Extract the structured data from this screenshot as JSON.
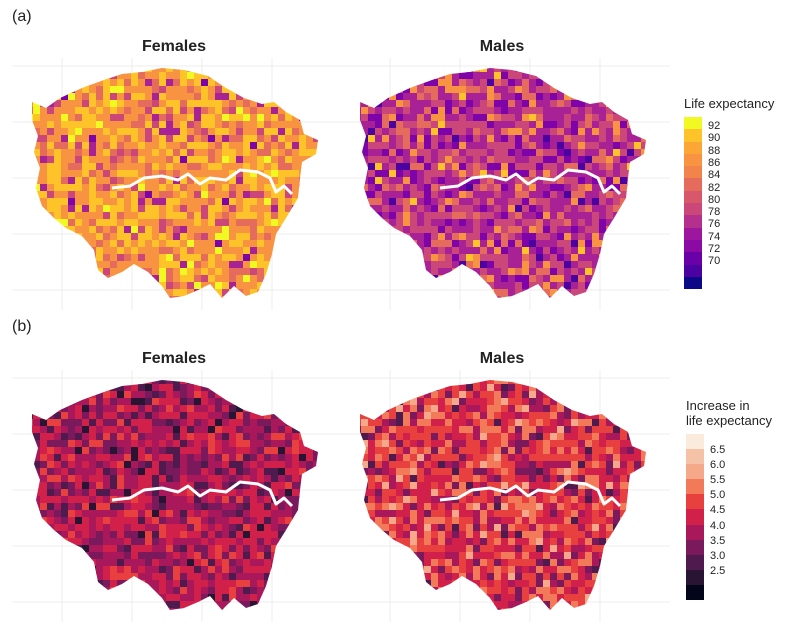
{
  "panels": [
    {
      "letter": "(a)",
      "facets": [
        {
          "title": "Females",
          "palette": [
            "#f0f921",
            "#fdc328",
            "#f89441",
            "#e56b5d",
            "#cb4679",
            "#a82296",
            "#7e03a8"
          ],
          "weights": [
            0.04,
            0.32,
            0.38,
            0.14,
            0.07,
            0.04,
            0.01
          ]
        },
        {
          "title": "Males",
          "palette": [
            "#fdc328",
            "#f89441",
            "#e56b5d",
            "#cb4679",
            "#a82296",
            "#7e03a8",
            "#4c02a1"
          ],
          "weights": [
            0.02,
            0.06,
            0.14,
            0.3,
            0.3,
            0.14,
            0.04
          ]
        }
      ],
      "legend": {
        "title": "Life expectancy",
        "colors": [
          "#f0f921",
          "#fdc328",
          "#fca636",
          "#f89441",
          "#f2844b",
          "#e56b5d",
          "#d8576b",
          "#cb4679",
          "#b52f8c",
          "#9c179e",
          "#8b0aa5",
          "#6a00a8",
          "#4c02a1",
          "#0d0887"
        ],
        "ticks": [
          "92",
          "90",
          "88",
          "86",
          "84",
          "82",
          "80",
          "78",
          "76",
          "74",
          "72",
          "70"
        ]
      }
    },
    {
      "letter": "(b)",
      "facets": [
        {
          "title": "Females",
          "palette": [
            "#e8403e",
            "#d1204a",
            "#a8185a",
            "#7a1a5c",
            "#4f1a4e",
            "#2a1434"
          ],
          "weights": [
            0.1,
            0.3,
            0.28,
            0.18,
            0.1,
            0.04
          ]
        },
        {
          "title": "Males",
          "palette": [
            "#f6a98a",
            "#f37a59",
            "#e8403e",
            "#d1204a",
            "#a8185a",
            "#7a1a5c",
            "#4f1a4e"
          ],
          "weights": [
            0.06,
            0.2,
            0.28,
            0.22,
            0.12,
            0.08,
            0.04
          ]
        }
      ],
      "legend": {
        "title": [
          "Increase in",
          "life expectancy"
        ],
        "colors": [
          "#faebdd",
          "#f6c2a7",
          "#f6a98a",
          "#f37a59",
          "#e8403e",
          "#d1204a",
          "#a8185a",
          "#7a1a5c",
          "#4f1a4e",
          "#2a1434",
          "#03051a"
        ],
        "ticks": [
          "6.5",
          "6.0",
          "5.5",
          "5.0",
          "4.5",
          "4.0",
          "3.5",
          "3.0",
          "2.5"
        ]
      }
    }
  ]
}
